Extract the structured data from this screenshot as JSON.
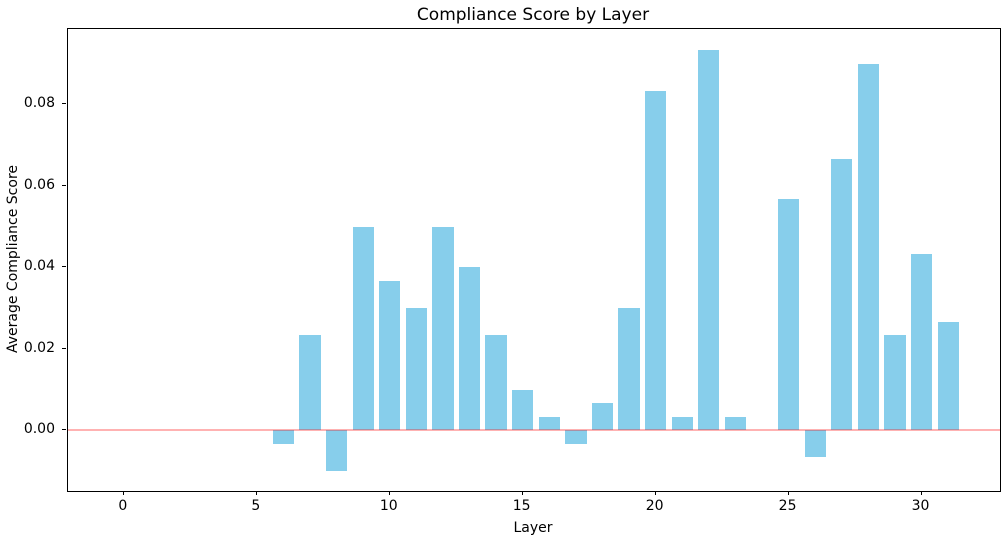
{
  "chart_data": {
    "type": "bar",
    "title": "Compliance Score by Layer",
    "xlabel": "Layer",
    "ylabel": "Average Compliance Score",
    "categories": [
      0,
      1,
      2,
      3,
      4,
      5,
      6,
      7,
      8,
      9,
      10,
      11,
      12,
      13,
      14,
      15,
      16,
      17,
      18,
      19,
      20,
      21,
      22,
      23,
      24,
      25,
      26,
      27,
      28,
      29,
      30,
      31
    ],
    "values": [
      0,
      0,
      0,
      0,
      0,
      0,
      -0.00333,
      0.02333,
      -0.01,
      0.05,
      0.03667,
      0.03,
      0.05,
      0.04,
      0.02333,
      0.01,
      0.00333,
      -0.00333,
      0.00667,
      0.03,
      0.08333,
      0.00333,
      0.09333,
      0.00333,
      0,
      0.05667,
      -0.00667,
      0.06667,
      0.09,
      0.02333,
      0.04333,
      0.02667
    ],
    "bar_color": "#87ceeb",
    "bar_width_units": 0.8,
    "zero_line_color": "#ff0000",
    "zero_line_alpha": 0.3,
    "x_ticks": [
      0,
      5,
      10,
      15,
      20,
      25,
      30
    ],
    "x_tick_labels": [
      "0",
      "5",
      "10",
      "15",
      "20",
      "25",
      "30"
    ],
    "y_ticks": [
      0.0,
      0.02,
      0.04,
      0.06,
      0.08
    ],
    "y_tick_labels": [
      "0.00",
      "0.02",
      "0.04",
      "0.06",
      "0.08"
    ],
    "xlim": [
      -2.1,
      32.95
    ],
    "ylim": [
      -0.0149,
      0.0985
    ],
    "grid": false,
    "legend": null,
    "background_color": "#ffffff",
    "spine_color": "#000000"
  }
}
